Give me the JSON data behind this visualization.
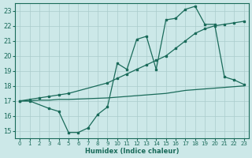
{
  "xlabel": "Humidex (Indice chaleur)",
  "xlim": [
    -0.5,
    23.5
  ],
  "ylim": [
    14.5,
    23.5
  ],
  "yticks": [
    15,
    16,
    17,
    18,
    19,
    20,
    21,
    22,
    23
  ],
  "xticks": [
    0,
    1,
    2,
    3,
    4,
    5,
    6,
    7,
    8,
    9,
    10,
    11,
    12,
    13,
    14,
    15,
    16,
    17,
    18,
    19,
    20,
    21,
    22,
    23
  ],
  "bg_color": "#cce8e8",
  "grid_color": "#aacccc",
  "line_color": "#1a6b5a",
  "line1_x": [
    0,
    1,
    3,
    4,
    5,
    6,
    7,
    8,
    9,
    10,
    11,
    12,
    13,
    14,
    15,
    16,
    17,
    18,
    19,
    20,
    21,
    22,
    23
  ],
  "line1_y": [
    17.0,
    17.0,
    16.5,
    16.3,
    14.9,
    14.9,
    15.2,
    16.1,
    16.6,
    19.5,
    19.1,
    21.1,
    21.3,
    19.1,
    22.4,
    22.5,
    23.1,
    23.3,
    22.1,
    22.1,
    18.6,
    18.4,
    18.1
  ],
  "line2_x": [
    0,
    1,
    2,
    3,
    4,
    5,
    9,
    10,
    11,
    12,
    13,
    14,
    15,
    16,
    17,
    18,
    19,
    20,
    21,
    22,
    23
  ],
  "line2_y": [
    17.0,
    17.1,
    17.2,
    17.3,
    17.4,
    17.5,
    18.2,
    18.5,
    18.8,
    19.1,
    19.4,
    19.7,
    20.0,
    20.5,
    21.0,
    21.5,
    21.8,
    22.0,
    22.1,
    22.2,
    22.3
  ],
  "line3_x": [
    0,
    1,
    2,
    3,
    4,
    5,
    9,
    10,
    11,
    12,
    13,
    14,
    15,
    16,
    17,
    18,
    19,
    20,
    21,
    22,
    23
  ],
  "line3_y": [
    17.0,
    17.0,
    17.05,
    17.05,
    17.1,
    17.1,
    17.2,
    17.25,
    17.3,
    17.35,
    17.4,
    17.45,
    17.5,
    17.6,
    17.7,
    17.75,
    17.8,
    17.85,
    17.9,
    17.95,
    18.0
  ]
}
